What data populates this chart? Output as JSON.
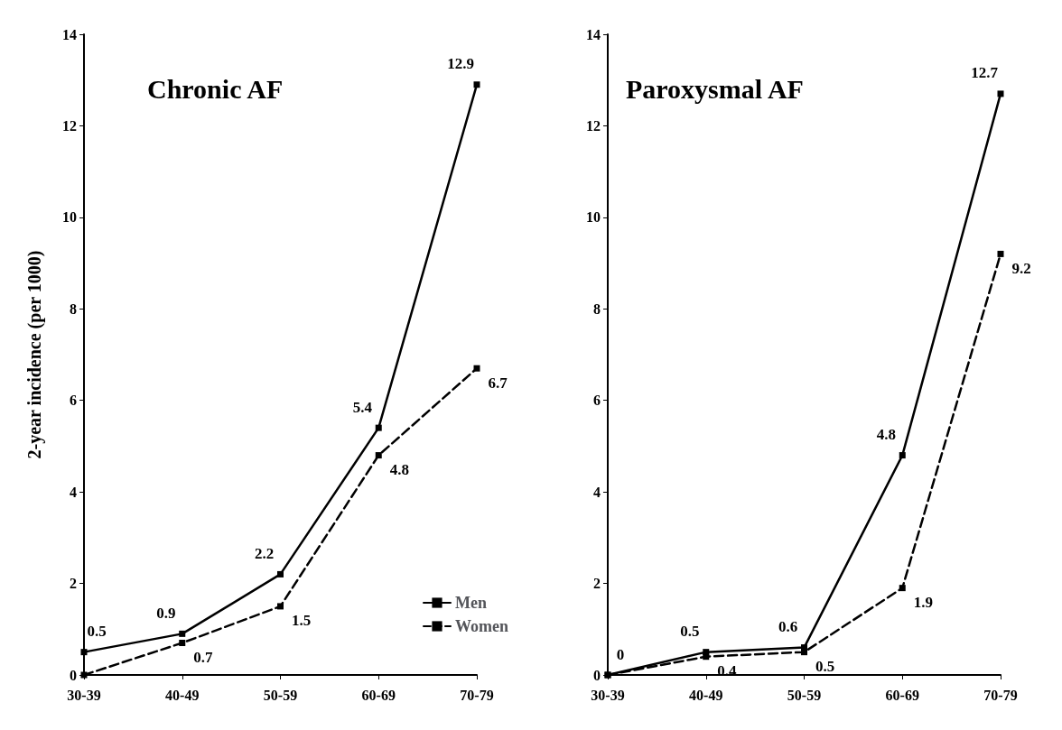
{
  "chart_data": [
    {
      "type": "line",
      "title": "Chronic AF",
      "ylabel": "2-year incidence (per 1000)",
      "categories": [
        "30-39",
        "40-49",
        "50-59",
        "60-69",
        "70-79"
      ],
      "ylim": [
        0,
        14
      ],
      "yticks": [
        0,
        2,
        4,
        6,
        8,
        10,
        12,
        14
      ],
      "grid": false,
      "legend": "bottom right",
      "marker": "square",
      "series": [
        {
          "name": "Men",
          "color": "#000000",
          "line_style": "solid",
          "values": [
            0.5,
            0.9,
            2.2,
            5.4,
            12.9
          ],
          "value_labels": [
            "0.5",
            "0.9",
            "2.2",
            "5.4",
            "12.9"
          ]
        },
        {
          "name": "Women",
          "color": "#000000",
          "line_style": "dashed",
          "values": [
            0,
            0.7,
            1.5,
            4.8,
            6.7
          ],
          "value_labels": [
            null,
            "0.7",
            "1.5",
            "4.8",
            "6.7"
          ]
        }
      ]
    },
    {
      "type": "line",
      "title": "Paroxysmal AF",
      "categories": [
        "30-39",
        "40-49",
        "50-59",
        "60-69",
        "70-79"
      ],
      "ylim": [
        0,
        14
      ],
      "yticks": [
        0,
        2,
        4,
        6,
        8,
        10,
        12,
        14
      ],
      "grid": false,
      "legend": false,
      "marker": "square",
      "series": [
        {
          "color": "#000000",
          "line_style": "solid",
          "values": [
            0,
            0.5,
            0.6,
            4.8,
            12.7
          ],
          "value_labels": [
            "0",
            "0.5",
            "0.6",
            "4.8",
            "12.7"
          ]
        },
        {
          "color": "#000000",
          "line_style": "dashed",
          "values": [
            0,
            0.4,
            0.5,
            1.9,
            9.2
          ],
          "value_labels": [
            null,
            "0.4",
            "0.5",
            "1.9",
            "9.2"
          ]
        }
      ]
    }
  ]
}
